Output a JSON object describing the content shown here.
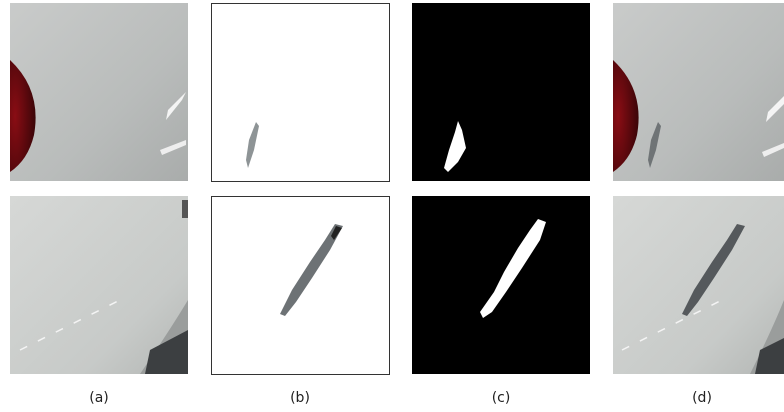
{
  "captions": [
    "(a)",
    "(b)",
    "(c)",
    "(d)"
  ]
}
